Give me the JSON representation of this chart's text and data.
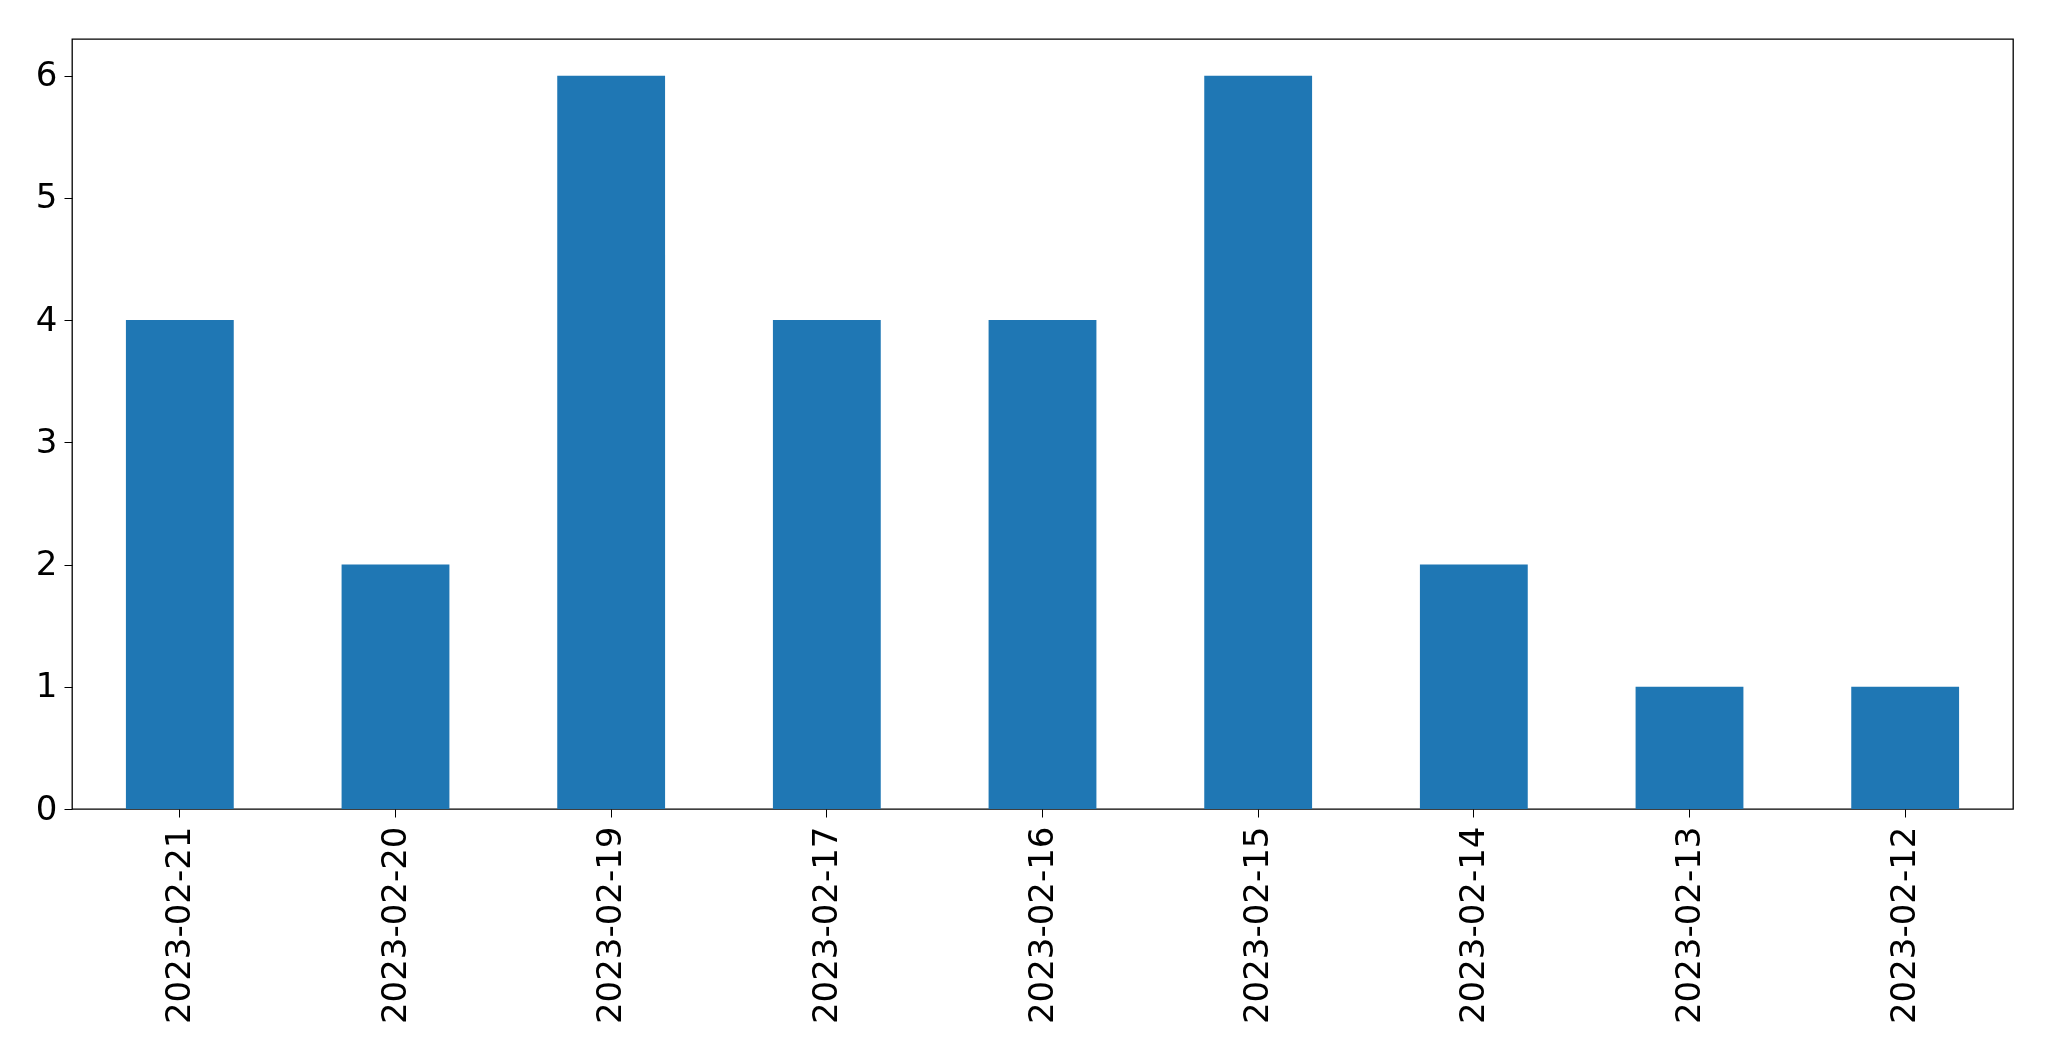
{
  "chart_data": {
    "type": "bar",
    "categories": [
      "2023-02-21",
      "2023-02-20",
      "2023-02-19",
      "2023-02-17",
      "2023-02-16",
      "2023-02-15",
      "2023-02-14",
      "2023-02-13",
      "2023-02-12"
    ],
    "values": [
      4,
      2,
      6,
      4,
      4,
      6,
      2,
      1,
      1
    ],
    "color": "#1f77b4",
    "ylim": [
      0,
      6.3
    ],
    "yticks": [
      0,
      1,
      2,
      3,
      4,
      5,
      6
    ],
    "grid": false
  }
}
